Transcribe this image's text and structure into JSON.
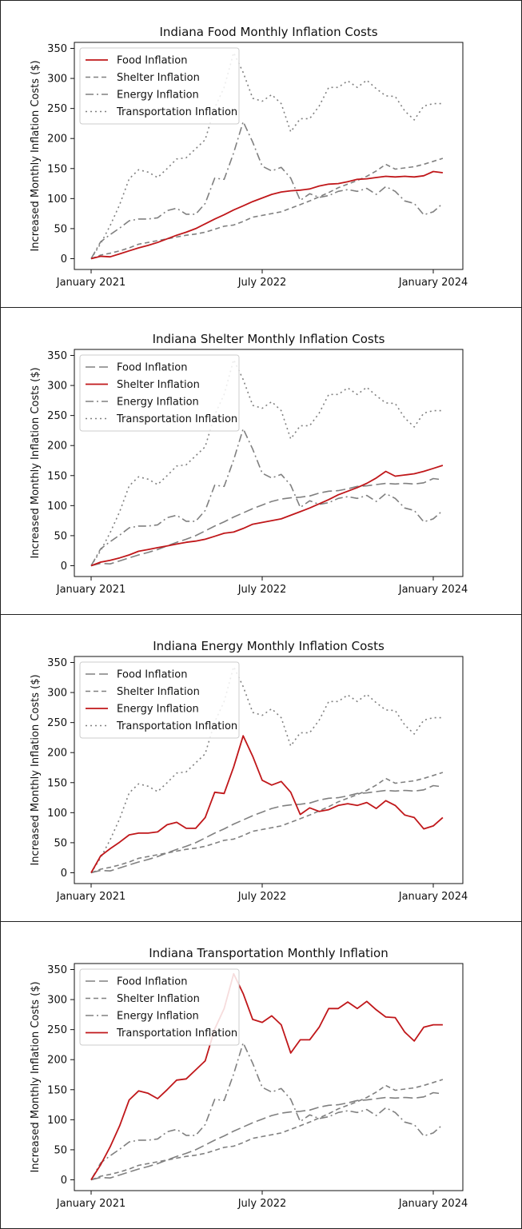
{
  "months": [
    "2021-01",
    "2021-02",
    "2021-03",
    "2021-04",
    "2021-05",
    "2021-06",
    "2021-07",
    "2021-08",
    "2021-09",
    "2021-10",
    "2021-11",
    "2021-12",
    "2022-01",
    "2022-02",
    "2022-03",
    "2022-04",
    "2022-05",
    "2022-06",
    "2022-07",
    "2022-08",
    "2022-09",
    "2022-10",
    "2022-11",
    "2022-12",
    "2023-01",
    "2023-02",
    "2023-03",
    "2023-04",
    "2023-05",
    "2023-06",
    "2023-07",
    "2023-08",
    "2023-09",
    "2023-10",
    "2023-11",
    "2023-12",
    "2024-01",
    "2024-02"
  ],
  "chart_data": [
    {
      "type": "line",
      "title": "Indiana Food Monthly Inflation Costs",
      "ylabel": "Increased Monthly Inflation Costs ($)",
      "xlabel": "",
      "x_ticks": [
        "January 2021",
        "July 2022",
        "January 2024"
      ],
      "y_ticks": [
        0,
        50,
        100,
        150,
        200,
        250,
        300,
        350
      ],
      "ylim": [
        -18,
        360
      ],
      "legend_position": "top-left",
      "highlight": "Food Inflation",
      "series": [
        {
          "name": "Food Inflation",
          "values": [
            0,
            4,
            3,
            8,
            13,
            18,
            22,
            27,
            33,
            39,
            44,
            50,
            58,
            66,
            73,
            81,
            88,
            95,
            101,
            107,
            111,
            113,
            114,
            116,
            121,
            124,
            125,
            128,
            132,
            133,
            135,
            137,
            136,
            137,
            136,
            138,
            145,
            143
          ]
        },
        {
          "name": "Shelter Inflation",
          "values": [
            0,
            6,
            9,
            13,
            18,
            24,
            27,
            30,
            33,
            36,
            39,
            41,
            44,
            49,
            54,
            56,
            62,
            69,
            72,
            75,
            78,
            84,
            90,
            96,
            103,
            110,
            118,
            124,
            130,
            137,
            146,
            157,
            149,
            151,
            153,
            157,
            162,
            167
          ]
        },
        {
          "name": "Energy Inflation",
          "values": [
            0,
            28,
            40,
            51,
            63,
            66,
            66,
            68,
            80,
            84,
            74,
            74,
            92,
            134,
            132,
            176,
            228,
            194,
            154,
            146,
            152,
            134,
            97,
            108,
            102,
            105,
            112,
            115,
            112,
            117,
            107,
            120,
            112,
            96,
            92,
            73,
            78,
            92
          ]
        },
        {
          "name": "Transportation Inflation",
          "values": [
            0,
            25,
            55,
            90,
            133,
            148,
            144,
            135,
            150,
            166,
            168,
            183,
            198,
            251,
            285,
            343,
            310,
            267,
            262,
            273,
            258,
            211,
            233,
            233,
            254,
            285,
            285,
            296,
            285,
            297,
            283,
            271,
            270,
            246,
            231,
            254,
            258,
            258
          ]
        }
      ]
    },
    {
      "type": "line",
      "title": "Indiana Shelter Monthly Inflation Costs",
      "ylabel": "Increased Monthly Inflation Costs ($)",
      "xlabel": "",
      "x_ticks": [
        "January 2021",
        "July 2022",
        "January 2024"
      ],
      "y_ticks": [
        0,
        50,
        100,
        150,
        200,
        250,
        300,
        350
      ],
      "ylim": [
        -18,
        360
      ],
      "legend_position": "top-left",
      "highlight": "Shelter Inflation",
      "series": [
        {
          "name": "Food Inflation",
          "values": [
            0,
            4,
            3,
            8,
            13,
            18,
            22,
            27,
            33,
            39,
            44,
            50,
            58,
            66,
            73,
            81,
            88,
            95,
            101,
            107,
            111,
            113,
            114,
            116,
            121,
            124,
            125,
            128,
            132,
            133,
            135,
            137,
            136,
            137,
            136,
            138,
            145,
            143
          ]
        },
        {
          "name": "Shelter Inflation",
          "values": [
            0,
            6,
            9,
            13,
            18,
            24,
            27,
            30,
            33,
            36,
            39,
            41,
            44,
            49,
            54,
            56,
            62,
            69,
            72,
            75,
            78,
            84,
            90,
            96,
            103,
            110,
            118,
            124,
            130,
            137,
            146,
            157,
            149,
            151,
            153,
            157,
            162,
            167
          ]
        },
        {
          "name": "Energy Inflation",
          "values": [
            0,
            28,
            40,
            51,
            63,
            66,
            66,
            68,
            80,
            84,
            74,
            74,
            92,
            134,
            132,
            176,
            228,
            194,
            154,
            146,
            152,
            134,
            97,
            108,
            102,
            105,
            112,
            115,
            112,
            117,
            107,
            120,
            112,
            96,
            92,
            73,
            78,
            92
          ]
        },
        {
          "name": "Transportation Inflation",
          "values": [
            0,
            25,
            55,
            90,
            133,
            148,
            144,
            135,
            150,
            166,
            168,
            183,
            198,
            251,
            285,
            343,
            310,
            267,
            262,
            273,
            258,
            211,
            233,
            233,
            254,
            285,
            285,
            296,
            285,
            297,
            283,
            271,
            270,
            246,
            231,
            254,
            258,
            258
          ]
        }
      ]
    },
    {
      "type": "line",
      "title": "Indiana Energy Monthly Inflation Costs",
      "ylabel": "Increased Monthly Inflation Costs ($)",
      "xlabel": "",
      "x_ticks": [
        "January 2021",
        "July 2022",
        "January 2024"
      ],
      "y_ticks": [
        0,
        50,
        100,
        150,
        200,
        250,
        300,
        350
      ],
      "ylim": [
        -18,
        360
      ],
      "legend_position": "top-left",
      "highlight": "Energy Inflation",
      "series": [
        {
          "name": "Food Inflation",
          "values": [
            0,
            4,
            3,
            8,
            13,
            18,
            22,
            27,
            33,
            39,
            44,
            50,
            58,
            66,
            73,
            81,
            88,
            95,
            101,
            107,
            111,
            113,
            114,
            116,
            121,
            124,
            125,
            128,
            132,
            133,
            135,
            137,
            136,
            137,
            136,
            138,
            145,
            143
          ]
        },
        {
          "name": "Shelter Inflation",
          "values": [
            0,
            6,
            9,
            13,
            18,
            24,
            27,
            30,
            33,
            36,
            39,
            41,
            44,
            49,
            54,
            56,
            62,
            69,
            72,
            75,
            78,
            84,
            90,
            96,
            103,
            110,
            118,
            124,
            130,
            137,
            146,
            157,
            149,
            151,
            153,
            157,
            162,
            167
          ]
        },
        {
          "name": "Energy Inflation",
          "values": [
            0,
            28,
            40,
            51,
            63,
            66,
            66,
            68,
            80,
            84,
            74,
            74,
            92,
            134,
            132,
            176,
            228,
            194,
            154,
            146,
            152,
            134,
            97,
            108,
            102,
            105,
            112,
            115,
            112,
            117,
            107,
            120,
            112,
            96,
            92,
            73,
            78,
            92
          ]
        },
        {
          "name": "Transportation Inflation",
          "values": [
            0,
            25,
            55,
            90,
            133,
            148,
            144,
            135,
            150,
            166,
            168,
            183,
            198,
            251,
            285,
            343,
            310,
            267,
            262,
            273,
            258,
            211,
            233,
            233,
            254,
            285,
            285,
            296,
            285,
            297,
            283,
            271,
            270,
            246,
            231,
            254,
            258,
            258
          ]
        }
      ]
    },
    {
      "type": "line",
      "title": "Indiana Transportation Monthly Inflation",
      "ylabel": "Increased Monthly Inflation Costs ($)",
      "xlabel": "",
      "x_ticks": [
        "January 2021",
        "July 2022",
        "January 2024"
      ],
      "y_ticks": [
        0,
        50,
        100,
        150,
        200,
        250,
        300,
        350
      ],
      "ylim": [
        -18,
        360
      ],
      "legend_position": "top-left",
      "highlight": "Transportation Inflation",
      "series": [
        {
          "name": "Food Inflation",
          "values": [
            0,
            4,
            3,
            8,
            13,
            18,
            22,
            27,
            33,
            39,
            44,
            50,
            58,
            66,
            73,
            81,
            88,
            95,
            101,
            107,
            111,
            113,
            114,
            116,
            121,
            124,
            125,
            128,
            132,
            133,
            135,
            137,
            136,
            137,
            136,
            138,
            145,
            143
          ]
        },
        {
          "name": "Shelter Inflation",
          "values": [
            0,
            6,
            9,
            13,
            18,
            24,
            27,
            30,
            33,
            36,
            39,
            41,
            44,
            49,
            54,
            56,
            62,
            69,
            72,
            75,
            78,
            84,
            90,
            96,
            103,
            110,
            118,
            124,
            130,
            137,
            146,
            157,
            149,
            151,
            153,
            157,
            162,
            167
          ]
        },
        {
          "name": "Energy Inflation",
          "values": [
            0,
            28,
            40,
            51,
            63,
            66,
            66,
            68,
            80,
            84,
            74,
            74,
            92,
            134,
            132,
            176,
            228,
            194,
            154,
            146,
            152,
            134,
            97,
            108,
            102,
            105,
            112,
            115,
            112,
            117,
            107,
            120,
            112,
            96,
            92,
            73,
            78,
            92
          ]
        },
        {
          "name": "Transportation Inflation",
          "values": [
            0,
            25,
            55,
            90,
            133,
            148,
            144,
            135,
            150,
            166,
            168,
            183,
            198,
            251,
            285,
            343,
            310,
            267,
            262,
            273,
            258,
            211,
            233,
            233,
            254,
            285,
            285,
            296,
            285,
            297,
            283,
            271,
            270,
            246,
            231,
            254,
            258,
            258
          ]
        }
      ]
    }
  ],
  "colors": {
    "highlight": "#c0171a",
    "muted": "#808080",
    "axis": "#111111",
    "legend_border": "#cccccc"
  }
}
